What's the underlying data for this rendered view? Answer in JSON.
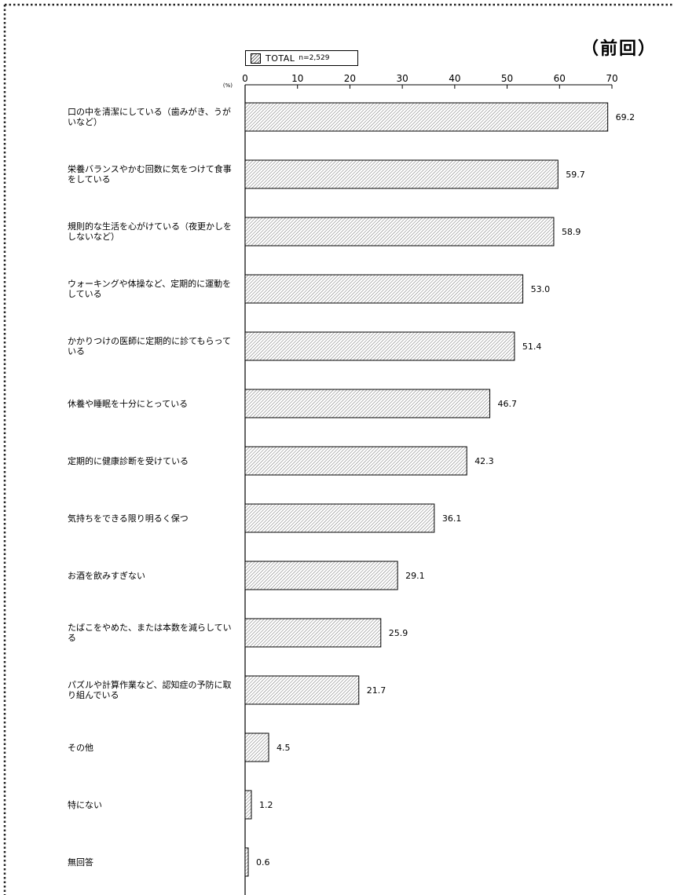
{
  "heading": "（前回）",
  "legend": {
    "name": "TOTAL",
    "n": "n=2,529"
  },
  "colors": {
    "bar_fill": "#ffffff",
    "bar_hatch": "#7a7a7a",
    "axis": "#000000",
    "border_dots": "#222222"
  },
  "chart_data": {
    "type": "bar",
    "orientation": "horizontal",
    "unit_label": "(%)",
    "xlim": [
      0,
      70
    ],
    "x_ticks": [
      "0",
      "10",
      "20",
      "30",
      "40",
      "50",
      "60",
      "70"
    ],
    "grid": false,
    "legend_position": "top-left",
    "categories": [
      "口の中を清潔にしている（歯みがき、うがいなど）",
      "栄養バランスやかむ回数に気をつけて食事をしている",
      "規則的な生活を心がけている（夜更かしをしないなど）",
      "ウォーキングや体操など、定期的に運動をしている",
      "かかりつけの医師に定期的に診てもらっている",
      "休養や睡眠を十分にとっている",
      "定期的に健康診断を受けている",
      "気持ちをできる限り明るく保つ",
      "お酒を飲みすぎない",
      "たばこをやめた、または本数を減らしている",
      "パズルや計算作業など、認知症の予防に取り組んでいる",
      "その他",
      "特にない",
      "無回答"
    ],
    "series": [
      {
        "name": "TOTAL",
        "values": [
          69.2,
          59.7,
          58.9,
          53.0,
          51.4,
          46.7,
          42.3,
          36.1,
          29.1,
          25.9,
          21.7,
          4.5,
          1.2,
          0.6
        ],
        "value_labels": [
          "69.2",
          "59.7",
          "58.9",
          "53.0",
          "51.4",
          "46.7",
          "42.3",
          "36.1",
          "29.1",
          "25.9",
          "21.7",
          "4.5",
          "1.2",
          "0.6"
        ]
      }
    ]
  }
}
